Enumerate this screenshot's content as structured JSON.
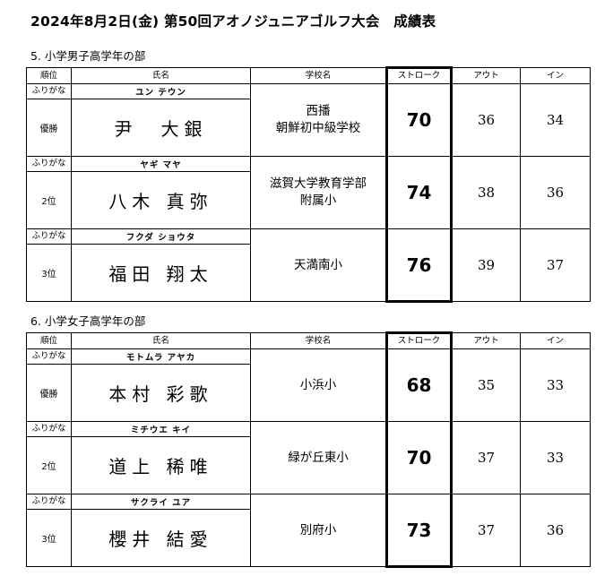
{
  "title": "2024年8月2日(金) 第50回アオノジュニアゴルフ大会　成績表",
  "header": {
    "rank": "順位",
    "name": "氏名",
    "school": "学校名",
    "stroke": "ストローク",
    "out": "アウト",
    "in": "イン"
  },
  "furigana_label": "ふりがな",
  "sections": [
    {
      "title": "5. 小学男子高学年の部",
      "rows": [
        {
          "rank": "優勝",
          "kana": "ユン テウン",
          "name": "尹　大銀",
          "school": "西播\n朝鮮初中級学校",
          "stroke": "70",
          "out": "36",
          "in": "34"
        },
        {
          "rank": "2位",
          "kana": "ヤギ マヤ",
          "name": "八木 真弥",
          "school": "滋賀大学教育学部\n附属小",
          "stroke": "74",
          "out": "38",
          "in": "36"
        },
        {
          "rank": "3位",
          "kana": "フクダ ショウタ",
          "name": "福田 翔太",
          "school": "天満南小",
          "stroke": "76",
          "out": "39",
          "in": "37"
        }
      ]
    },
    {
      "title": "6. 小学女子高学年の部",
      "rows": [
        {
          "rank": "優勝",
          "kana": "モトムラ アヤカ",
          "name": "本村 彩歌",
          "school": "小浜小",
          "stroke": "68",
          "out": "35",
          "in": "33"
        },
        {
          "rank": "2位",
          "kana": "ミチウエ キイ",
          "name": "道上 稀唯",
          "school": "緑が丘東小",
          "stroke": "70",
          "out": "37",
          "in": "33"
        },
        {
          "rank": "3位",
          "kana": "サクライ ユア",
          "name": "櫻井 結愛",
          "school": "別府小",
          "stroke": "73",
          "out": "37",
          "in": "36"
        }
      ]
    }
  ]
}
